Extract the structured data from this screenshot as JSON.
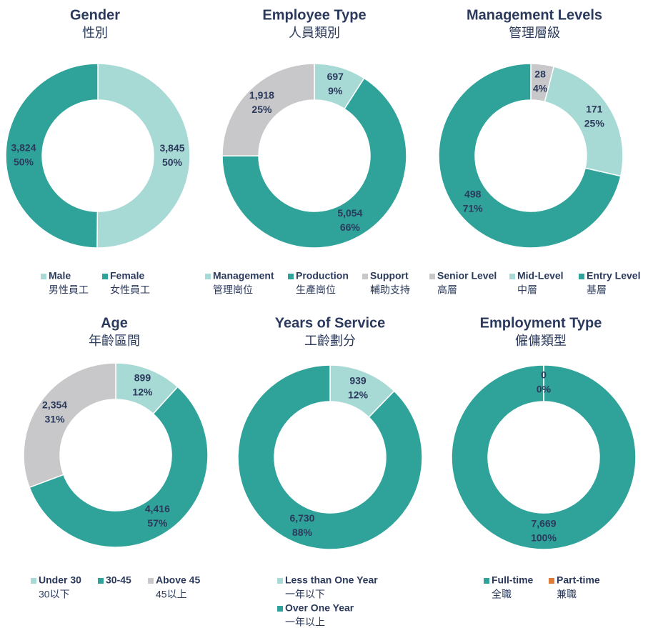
{
  "chart_data": [
    {
      "type": "pie",
      "title": "Gender",
      "subtitle": "性別",
      "categories": [
        "Male",
        "Female"
      ],
      "categories_sub": [
        "男性員工",
        "女性員工"
      ],
      "colors": [
        "#a8dad5",
        "#2fa39a"
      ],
      "values": [
        3845,
        3824
      ],
      "value_labels": [
        "3,845",
        "3,824"
      ],
      "percents": [
        50,
        50
      ],
      "percent_labels": [
        "50%",
        "50%"
      ]
    },
    {
      "type": "pie",
      "title": "Employee Type",
      "subtitle": "人員類別",
      "categories": [
        "Management",
        "Production",
        "Support"
      ],
      "categories_sub": [
        "管理崗位",
        "生產崗位",
        "輔助支持"
      ],
      "colors": [
        "#a8dad5",
        "#2fa39a",
        "#c8c8ca"
      ],
      "values": [
        697,
        5054,
        1918
      ],
      "value_labels": [
        "697",
        "5,054",
        "1,918"
      ],
      "percents": [
        9,
        66,
        25
      ],
      "percent_labels": [
        "9%",
        "66%",
        "25%"
      ]
    },
    {
      "type": "pie",
      "title": "Management Levels",
      "subtitle": "管理層級",
      "categories": [
        "Senior Level",
        "Mid-Level",
        "Entry Level"
      ],
      "categories_sub": [
        "高層",
        "中層",
        "基層"
      ],
      "colors": [
        "#c8c8ca",
        "#a8dad5",
        "#2fa39a"
      ],
      "values": [
        28,
        171,
        498
      ],
      "value_labels": [
        "28",
        "171",
        "498"
      ],
      "percents": [
        4,
        25,
        71
      ],
      "percent_labels": [
        "4%",
        "25%",
        "71%"
      ]
    },
    {
      "type": "pie",
      "title": "Age",
      "subtitle": "年齡區間",
      "categories": [
        "Under 30",
        "30-45",
        "Above 45"
      ],
      "categories_sub": [
        "30以下",
        null,
        "45以上"
      ],
      "colors": [
        "#a8dad5",
        "#2fa39a",
        "#c8c8ca"
      ],
      "values": [
        899,
        4416,
        2354
      ],
      "value_labels": [
        "899",
        "4,416",
        "2,354"
      ],
      "percents": [
        12,
        57,
        31
      ],
      "percent_labels": [
        "12%",
        "57%",
        "31%"
      ]
    },
    {
      "type": "pie",
      "title": "Years of Service",
      "subtitle": "工齡劃分",
      "categories": [
        "Less than One Year",
        "Over One Year"
      ],
      "categories_sub": [
        "一年以下",
        "一年以上"
      ],
      "colors": [
        "#a8dad5",
        "#2fa39a"
      ],
      "values": [
        939,
        6730
      ],
      "value_labels": [
        "939",
        "6,730"
      ],
      "percents": [
        12,
        88
      ],
      "percent_labels": [
        "12%",
        "88%"
      ]
    },
    {
      "type": "pie",
      "title": "Employment Type",
      "subtitle": "僱傭類型",
      "categories": [
        "Full-time",
        "Part-time"
      ],
      "categories_sub": [
        "全職",
        "兼職"
      ],
      "colors": [
        "#2fa39a",
        "#e07b39"
      ],
      "values": [
        7669,
        0
      ],
      "value_labels": [
        "7,669",
        "0"
      ],
      "percents": [
        100,
        0
      ],
      "percent_labels": [
        "100%",
        "0%"
      ]
    }
  ]
}
